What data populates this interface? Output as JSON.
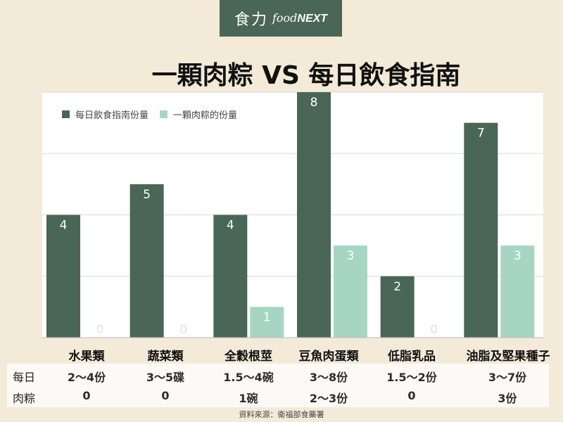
{
  "brand": {
    "zh": "食力",
    "en_prefix": "food",
    "en_suffix": "NEXT"
  },
  "title": "一顆肉粽 VS 每日飲食指南",
  "legend": [
    {
      "label": "每日飲食指南份量",
      "color": "#4a6656"
    },
    {
      "label": "一顆肉粽的份量",
      "color": "#a7d5c4"
    }
  ],
  "chart_data": {
    "type": "bar",
    "categories": [
      "水果類",
      "蔬菜類",
      "全穀根莖",
      "豆魚肉蛋類",
      "低脂乳品",
      "油脂及堅果種子"
    ],
    "series": [
      {
        "name": "每日飲食指南份量",
        "values": [
          4,
          5,
          4,
          8,
          2,
          7
        ],
        "color": "#4a6656"
      },
      {
        "name": "一顆肉粽的份量",
        "values": [
          0,
          0,
          1,
          3,
          0,
          3
        ],
        "color": "#a7d5c4"
      }
    ],
    "ylim": [
      0,
      8
    ],
    "grid": true,
    "legend_position": "top-left"
  },
  "table": {
    "rows": [
      {
        "head": "每日",
        "cells": [
          "2～4份",
          "3～5碟",
          "1.5～4碗",
          "3～8份",
          "1.5～2份",
          "3～7份"
        ]
      },
      {
        "head": "肉粽",
        "cells": [
          "0",
          "0",
          "1碗",
          "2～3份",
          "0",
          "3份"
        ]
      }
    ]
  },
  "source": "資料來源：衛福部食藥署"
}
